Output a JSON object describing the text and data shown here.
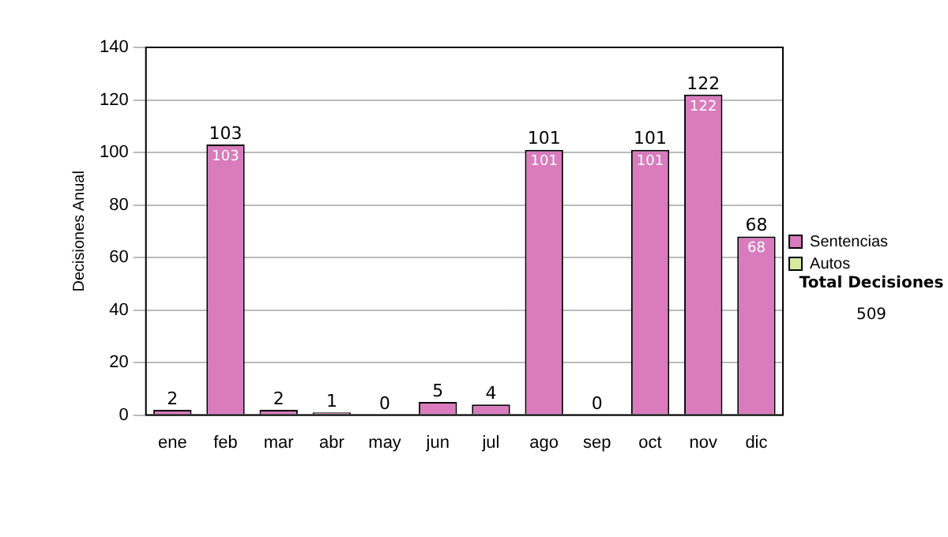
{
  "chart_data": {
    "type": "bar",
    "stacked": true,
    "ylabel": "Decisiones Anual",
    "categories": [
      "ene",
      "feb",
      "mar",
      "abr",
      "may",
      "jun",
      "jul",
      "ago",
      "sep",
      "oct",
      "nov",
      "dic"
    ],
    "series": [
      {
        "name": "Sentencias",
        "color": "#d97bbd",
        "values": [
          2,
          103,
          2,
          1,
          0,
          5,
          4,
          101,
          0,
          101,
          122,
          68
        ],
        "value_labels": [
          null,
          "103",
          null,
          null,
          null,
          null,
          null,
          "101",
          null,
          "101",
          "122",
          "68"
        ]
      },
      {
        "name": "Autos",
        "color": "#d6eba0",
        "values": [
          0,
          0,
          0,
          0,
          0,
          0,
          0,
          0,
          0,
          0,
          0,
          0
        ]
      }
    ],
    "totals": [
      "2",
      "103",
      "2",
      "1",
      "0",
      "5",
      "4",
      "101",
      "0",
      "101",
      "122",
      "68"
    ],
    "ylim": [
      0,
      140
    ],
    "yticks": [
      0,
      20,
      40,
      60,
      80,
      100,
      120,
      140
    ],
    "grid": "y",
    "legend": "right",
    "annotations": [
      "Total Decisiones",
      "509"
    ]
  }
}
